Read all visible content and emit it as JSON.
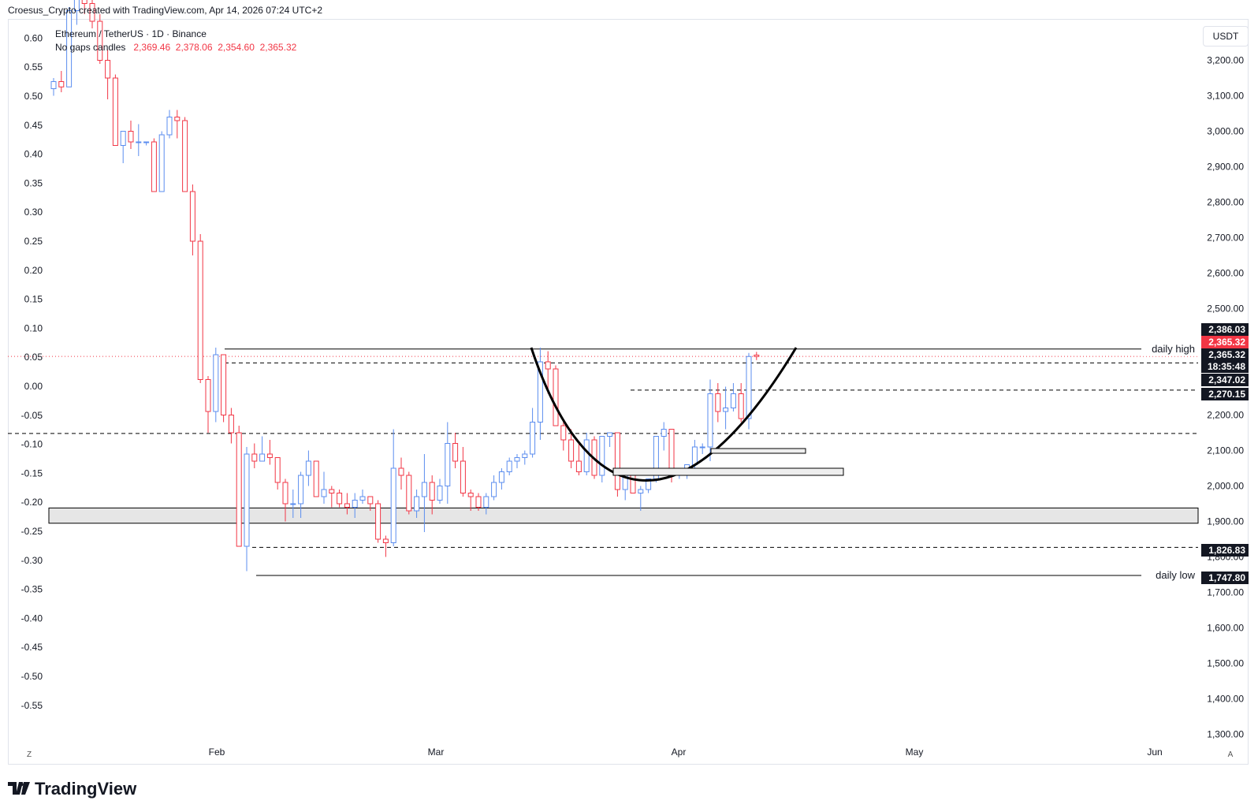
{
  "header": {
    "created_by": "Croesus_Crypto created with TradingView.com, Apr 14, 2026 07:24 UTC+2"
  },
  "legend": {
    "symbol": "Ethereum / TetherUS · 1D · Binance",
    "candle_type": "No gaps candles",
    "open": "2,369.46",
    "high": "2,378.06",
    "low": "2,354.60",
    "close": "2,365.32"
  },
  "currency_button": "USDT",
  "footer": {
    "brand": "TradingView",
    "left_btn": "Z",
    "right_btn": "A"
  },
  "colors": {
    "up": "#5b8def",
    "down": "#f23645",
    "zone": "#e6e6e6"
  },
  "chart_data": {
    "type": "candlestick",
    "left_axis": {
      "ticks": [
        "0.60",
        "0.55",
        "0.50",
        "0.45",
        "0.40",
        "0.35",
        "0.30",
        "0.25",
        "0.20",
        "0.15",
        "0.10",
        "0.05",
        "0.00",
        "-0.05",
        "-0.10",
        "-0.15",
        "-0.20",
        "-0.25",
        "-0.30",
        "-0.35",
        "-0.40",
        "-0.45",
        "-0.50",
        "-0.55"
      ]
    },
    "right_axis": {
      "ticks": [
        "3,200.00",
        "3,100.00",
        "3,000.00",
        "2,900.00",
        "2,800.00",
        "2,700.00",
        "2,600.00",
        "2,500.00",
        "2,200.00",
        "2,100.00",
        "2,000.00",
        "1,900.00",
        "1,800.00",
        "1,700.00",
        "1,600.00",
        "1,500.00",
        "1,400.00",
        "1,300.00"
      ]
    },
    "x_axis": {
      "ticks": [
        "Feb",
        "Mar",
        "Apr",
        "May",
        "Jun"
      ]
    },
    "price_labels": [
      {
        "value": "2,386.03",
        "price": 2386.03,
        "style": "dark"
      },
      {
        "value": "2,365.32",
        "price": 2365.32,
        "style": "red"
      },
      {
        "value": "2,365.32",
        "price": 2365.32,
        "style": "dark"
      },
      {
        "value": "18:35:48",
        "price": null,
        "style": "dark"
      },
      {
        "value": "2,347.02",
        "price": 2347.02,
        "style": "dark"
      },
      {
        "value": "2,270.15",
        "price": 2270.15,
        "style": "dark"
      },
      {
        "value": "1,826.83",
        "price": 1826.83,
        "style": "dark"
      },
      {
        "value": "1,747.80",
        "price": 1747.8,
        "style": "dark"
      }
    ],
    "annotations": [
      {
        "text": "daily high",
        "price": 2386.03
      },
      {
        "text": "daily low",
        "price": 1747.8
      }
    ],
    "levels": [
      {
        "price": 2386.03,
        "style": "solid"
      },
      {
        "price": 2347.02,
        "style": "dashed"
      },
      {
        "price": 2270.15,
        "style": "dashed"
      },
      {
        "price": 2148,
        "style": "dashed"
      },
      {
        "price": 1826.83,
        "style": "dashed"
      },
      {
        "price": 1747.8,
        "style": "solid"
      }
    ],
    "zones": [
      {
        "from": 1895,
        "to": 1938
      }
    ],
    "candles": [
      [
        3120,
        3150,
        3100,
        3140
      ],
      [
        3140,
        3170,
        3110,
        3125
      ],
      [
        3125,
        3350,
        3125,
        3340
      ],
      [
        3340,
        3420,
        3300,
        3380
      ],
      [
        3380,
        3420,
        3330,
        3360
      ],
      [
        3360,
        3380,
        3290,
        3310
      ],
      [
        3310,
        3330,
        3190,
        3200
      ],
      [
        3200,
        3230,
        3090,
        3150
      ],
      [
        3150,
        3160,
        2960,
        2960
      ],
      [
        2960,
        3000,
        2910,
        3000
      ],
      [
        3000,
        3030,
        2950,
        2970
      ],
      [
        2970,
        3020,
        2930,
        2970
      ],
      [
        2970,
        2970,
        2960,
        2970
      ],
      [
        2970,
        2980,
        2830,
        2830
      ],
      [
        2830,
        3000,
        2830,
        2990
      ],
      [
        2990,
        3060,
        2980,
        3040
      ],
      [
        3040,
        3060,
        2980,
        3030
      ],
      [
        3030,
        3040,
        2830,
        2830
      ],
      [
        2830,
        2850,
        2650,
        2690
      ],
      [
        2690,
        2710,
        2290,
        2300
      ],
      [
        2300,
        2310,
        2150,
        2210
      ],
      [
        2210,
        2390,
        2180,
        2370
      ],
      [
        2370,
        2370,
        2180,
        2200
      ],
      [
        2200,
        2220,
        2120,
        2150
      ],
      [
        2150,
        2170,
        1830,
        1830
      ],
      [
        1830,
        2110,
        1760,
        2090
      ],
      [
        2090,
        2120,
        2050,
        2070
      ],
      [
        2070,
        2140,
        2080,
        2090
      ],
      [
        2090,
        2130,
        2060,
        2080
      ],
      [
        2080,
        2080,
        1990,
        2010
      ],
      [
        2010,
        2020,
        1900,
        1950
      ],
      [
        1950,
        1990,
        1910,
        1950
      ],
      [
        1950,
        2040,
        1910,
        2030
      ],
      [
        2030,
        2100,
        2000,
        2070
      ],
      [
        2070,
        2070,
        1970,
        1970
      ],
      [
        1970,
        2040,
        1950,
        1990
      ],
      [
        1990,
        2000,
        1940,
        1980
      ],
      [
        1980,
        1990,
        1940,
        1950
      ],
      [
        1950,
        1980,
        1920,
        1940
      ],
      [
        1940,
        1980,
        1910,
        1960
      ],
      [
        1960,
        1990,
        1950,
        1970
      ],
      [
        1970,
        1970,
        1930,
        1950
      ],
      [
        1950,
        1960,
        1840,
        1850
      ],
      [
        1850,
        1860,
        1800,
        1840
      ],
      [
        1840,
        2160,
        1830,
        2050
      ],
      [
        2050,
        2080,
        1990,
        2030
      ],
      [
        2030,
        2040,
        1920,
        1930
      ],
      [
        1930,
        1990,
        1910,
        1970
      ],
      [
        1970,
        2090,
        1870,
        2010
      ],
      [
        2010,
        2030,
        1920,
        1960
      ],
      [
        1960,
        2020,
        1950,
        2000
      ],
      [
        2000,
        2180,
        1950,
        2120
      ],
      [
        2120,
        2150,
        2050,
        2070
      ],
      [
        2070,
        2110,
        1970,
        1980
      ],
      [
        1980,
        1990,
        1930,
        1970
      ],
      [
        1970,
        1980,
        1930,
        1940
      ],
      [
        1940,
        1980,
        1920,
        1970
      ],
      [
        1970,
        2030,
        1960,
        2010
      ],
      [
        2010,
        2050,
        1990,
        2040
      ],
      [
        2040,
        2080,
        2030,
        2070
      ],
      [
        2070,
        2090,
        2050,
        2080
      ],
      [
        2080,
        2100,
        2060,
        2090
      ],
      [
        2090,
        2220,
        2080,
        2180
      ],
      [
        2180,
        2390,
        2130,
        2350
      ],
      [
        2350,
        2380,
        2260,
        2330
      ],
      [
        2330,
        2340,
        2170,
        2170
      ],
      [
        2170,
        2180,
        2100,
        2130
      ],
      [
        2130,
        2160,
        2050,
        2070
      ],
      [
        2070,
        2120,
        2030,
        2040
      ],
      [
        2040,
        2150,
        2030,
        2130
      ],
      [
        2130,
        2140,
        2020,
        2030
      ],
      [
        2030,
        2140,
        2010,
        2140
      ],
      [
        2140,
        2150,
        2110,
        2150
      ],
      [
        2150,
        2150,
        1970,
        1990
      ],
      [
        1990,
        2020,
        1960,
        2030
      ],
      [
        2030,
        2040,
        1980,
        1980
      ],
      [
        1980,
        2000,
        1930,
        1990
      ],
      [
        1990,
        2020,
        1980,
        2020
      ],
      [
        2020,
        2140,
        2010,
        2140
      ],
      [
        2140,
        2180,
        2100,
        2160
      ],
      [
        2160,
        2160,
        2010,
        2030
      ],
      [
        2030,
        2050,
        2020,
        2040
      ],
      [
        2040,
        2060,
        2020,
        2060
      ],
      [
        2060,
        2130,
        2050,
        2110
      ],
      [
        2110,
        2120,
        2090,
        2110
      ],
      [
        2110,
        2300,
        2070,
        2260
      ],
      [
        2260,
        2290,
        2180,
        2210
      ],
      [
        2210,
        2280,
        2160,
        2220
      ],
      [
        2220,
        2290,
        2210,
        2260
      ],
      [
        2260,
        2290,
        2180,
        2190
      ],
      [
        2190,
        2375,
        2160,
        2365
      ],
      [
        2369,
        2378,
        2355,
        2365
      ]
    ]
  }
}
